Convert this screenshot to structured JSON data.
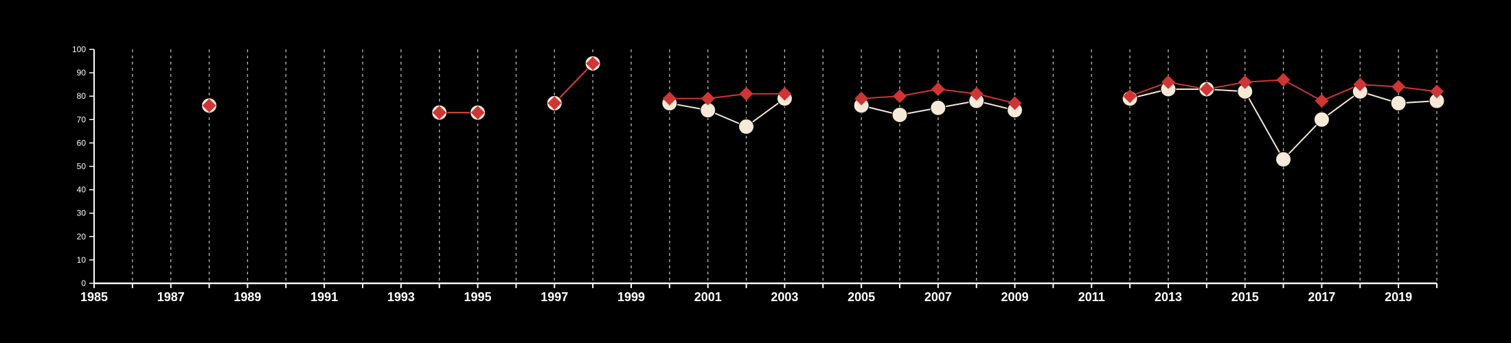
{
  "chart_data": {
    "type": "line",
    "title": "",
    "xlabel": "",
    "ylabel": "",
    "xlim": [
      1985,
      2020
    ],
    "ylim": [
      0,
      100
    ],
    "x_ticks": [
      "1985",
      "1987",
      "1989",
      "1991",
      "1993",
      "1995",
      "1997",
      "1999",
      "2001",
      "2003",
      "2005",
      "2007",
      "2009",
      "2011",
      "2013",
      "2015",
      "2017",
      "2019"
    ],
    "y_ticks": [
      "0",
      "10",
      "20",
      "30",
      "40",
      "50",
      "60",
      "70",
      "80",
      "90",
      "100"
    ],
    "vertical_grid_years": [
      1986,
      1987,
      1988,
      1989,
      1990,
      1991,
      1992,
      1993,
      1994,
      1995,
      1996,
      1997,
      1998,
      1999,
      2000,
      2001,
      2002,
      2003,
      2004,
      2005,
      2006,
      2007,
      2008,
      2009,
      2010,
      2011,
      2012,
      2013,
      2014,
      2015,
      2016,
      2017,
      2018,
      2019,
      2020
    ],
    "grid": "vertical dashed",
    "background_color": "#000000",
    "series": [
      {
        "color": "#f5e9d8",
        "marker": "circle",
        "points": [
          [
            1988,
            76
          ],
          [
            1994,
            73
          ],
          [
            1995,
            73
          ],
          [
            1997,
            77
          ],
          [
            1998,
            94
          ],
          [
            2000,
            77
          ],
          [
            2001,
            74
          ],
          [
            2002,
            67
          ],
          [
            2003,
            79
          ],
          [
            2005,
            76
          ],
          [
            2006,
            72
          ],
          [
            2007,
            75
          ],
          [
            2008,
            78
          ],
          [
            2009,
            74
          ],
          [
            2012,
            79
          ],
          [
            2013,
            83
          ],
          [
            2014,
            83
          ],
          [
            2015,
            82
          ],
          [
            2016,
            53
          ],
          [
            2017,
            70
          ],
          [
            2018,
            82
          ],
          [
            2019,
            77
          ],
          [
            2020,
            78
          ]
        ]
      },
      {
        "color": "#d03535",
        "marker": "diamond",
        "points": [
          [
            1988,
            76
          ],
          [
            1994,
            73
          ],
          [
            1995,
            73
          ],
          [
            1997,
            77
          ],
          [
            1998,
            94
          ],
          [
            2000,
            79
          ],
          [
            2001,
            79
          ],
          [
            2002,
            81
          ],
          [
            2003,
            81
          ],
          [
            2005,
            79
          ],
          [
            2006,
            80
          ],
          [
            2007,
            83
          ],
          [
            2008,
            81
          ],
          [
            2009,
            77
          ],
          [
            2012,
            80
          ],
          [
            2013,
            86
          ],
          [
            2014,
            83
          ],
          [
            2015,
            86
          ],
          [
            2016,
            87
          ],
          [
            2017,
            78
          ],
          [
            2018,
            85
          ],
          [
            2019,
            84
          ],
          [
            2020,
            82
          ]
        ]
      }
    ]
  }
}
